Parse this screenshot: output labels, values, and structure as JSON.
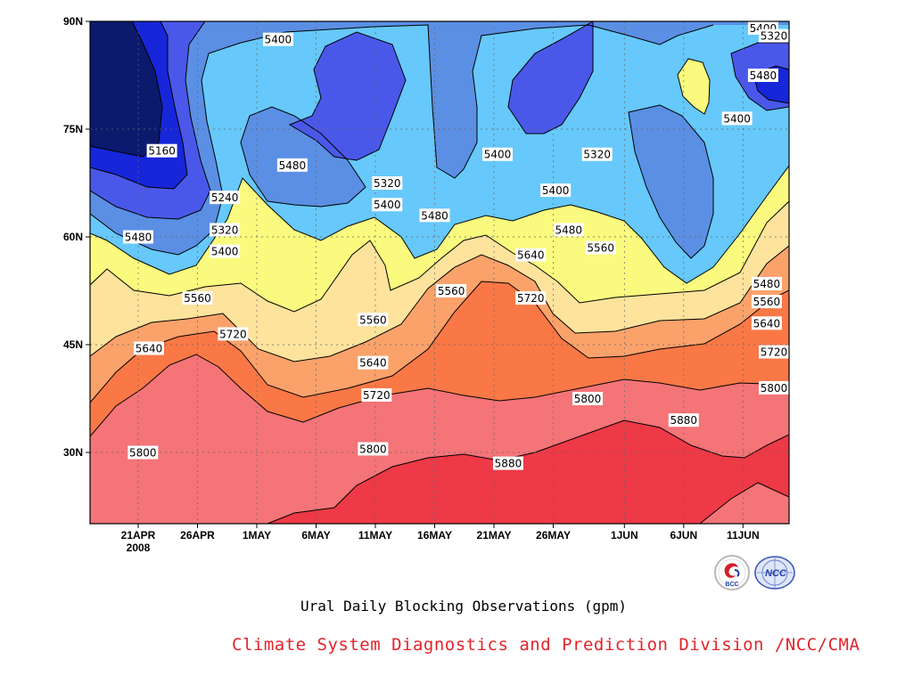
{
  "chart_data": {
    "type": "contour",
    "title": "Ural Daily Blocking Observations (gpm)",
    "xlabel": "",
    "ylabel": "",
    "x_tick_labels": [
      "21APR",
      "26APR",
      "1MAY",
      "6MAY",
      "11MAY",
      "16MAY",
      "21MAY",
      "26MAY",
      "1JUN",
      "6JUN",
      "11JUN"
    ],
    "year_label": "2008",
    "y_tick_labels": [
      "90N",
      "75N",
      "60N",
      "45N",
      "30N"
    ],
    "y_values": [
      90,
      75,
      60,
      45,
      30
    ],
    "ylim": [
      20,
      90
    ],
    "grid": "dotted",
    "contour_levels": [
      5160,
      5240,
      5320,
      5400,
      5480,
      5560,
      5640,
      5720,
      5800,
      5880
    ],
    "fill_colors": {
      "lt5160": "#0c1a6e",
      "5160-5240": "#1726d9",
      "5240-5320": "#4a58ea",
      "5320-5400": "#5a8fe4",
      "5400-5480": "#66c8fb",
      "5480-5560": "#fafb7e",
      "5560-5640": "#fde39c",
      "5640-5720": "#fba26b",
      "5720-5800": "#fa7846",
      "5800-5880": "#f47478",
      "gt5880": "#ee3946"
    },
    "contour_labels": [
      {
        "text": "5400",
        "lat": 87.5,
        "day": 11.8
      },
      {
        "text": "5160",
        "lat": 72.0,
        "day": 2.0
      },
      {
        "text": "5240",
        "lat": 65.5,
        "day": 7.3
      },
      {
        "text": "5320",
        "lat": 61.0,
        "day": 7.3
      },
      {
        "text": "5400",
        "lat": 58.0,
        "day": 7.3
      },
      {
        "text": "5480",
        "lat": 60.0,
        "day": 0.0
      },
      {
        "text": "5480",
        "lat": 70.0,
        "day": 13.0
      },
      {
        "text": "5320",
        "lat": 67.5,
        "day": 21.0
      },
      {
        "text": "5400",
        "lat": 64.5,
        "day": 21.0
      },
      {
        "text": "5480",
        "lat": 63.0,
        "day": 25.0
      },
      {
        "text": "5400",
        "lat": 71.5,
        "day": 30.3
      },
      {
        "text": "5320",
        "lat": 71.5,
        "day": 38.7
      },
      {
        "text": "5400",
        "lat": 66.5,
        "day": 35.2
      },
      {
        "text": "5480",
        "lat": 61.0,
        "day": 36.3
      },
      {
        "text": "5560",
        "lat": 58.5,
        "day": 39.0
      },
      {
        "text": "5640",
        "lat": 57.5,
        "day": 33.1
      },
      {
        "text": "5720",
        "lat": 51.5,
        "day": 33.1
      },
      {
        "text": "5560",
        "lat": 52.5,
        "day": 26.4
      },
      {
        "text": "5560",
        "lat": 48.5,
        "day": 19.8
      },
      {
        "text": "5560",
        "lat": 51.5,
        "day": 5.0
      },
      {
        "text": "5640",
        "lat": 44.5,
        "day": 0.9
      },
      {
        "text": "5720",
        "lat": 46.5,
        "day": 8.0
      },
      {
        "text": "5640",
        "lat": 42.5,
        "day": 19.8
      },
      {
        "text": "5720",
        "lat": 38.0,
        "day": 20.1
      },
      {
        "text": "5800",
        "lat": 30.5,
        "day": 19.8
      },
      {
        "text": "5800",
        "lat": 30.0,
        "day": 0.4
      },
      {
        "text": "5880",
        "lat": 28.5,
        "day": 31.2
      },
      {
        "text": "5800",
        "lat": 37.5,
        "day": 37.9
      },
      {
        "text": "5880",
        "lat": 34.5,
        "day": 46.0
      },
      {
        "text": "5400",
        "lat": 90.0,
        "day": 52.7
      },
      {
        "text": "5320",
        "lat": 88.0,
        "day": 57.1
      },
      {
        "text": "5480",
        "lat": 82.5,
        "day": 52.7
      },
      {
        "text": "5400",
        "lat": 76.5,
        "day": 50.5
      },
      {
        "text": "5480",
        "lat": 53.5,
        "day": 53.0
      },
      {
        "text": "5560",
        "lat": 51.0,
        "day": 53.0
      },
      {
        "text": "5640",
        "lat": 48.0,
        "day": 53.0
      },
      {
        "text": "5720",
        "lat": 44.0,
        "day": 53.7
      },
      {
        "text": "5800",
        "lat": 39.0,
        "day": 54.0
      }
    ]
  },
  "caption": {
    "title": "Ural Daily Blocking Observations (gpm)",
    "credit": "Climate System Diagnostics and Prediction Division /NCC/CMA"
  },
  "logos": {
    "bcc_text": "BCC",
    "ncc_text": "NCC"
  }
}
